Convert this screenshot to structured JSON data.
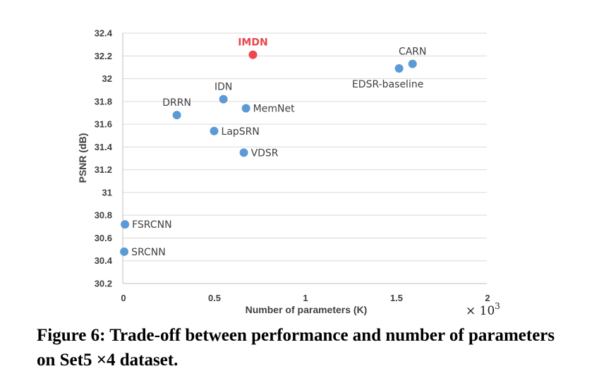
{
  "chart_data": {
    "type": "scatter",
    "xlabel": "Number of parameters (K)",
    "ylabel": "PSNR (dB)",
    "x_multiplier_label": "× 10",
    "x_multiplier_exp": "3",
    "xlim": [
      0,
      2
    ],
    "ylim": [
      30.2,
      32.4
    ],
    "x_ticks": [
      {
        "v": 0,
        "label": "0"
      },
      {
        "v": 0.5,
        "label": "0.5"
      },
      {
        "v": 1,
        "label": "1"
      },
      {
        "v": 1.5,
        "label": "1.5"
      },
      {
        "v": 2,
        "label": "2"
      }
    ],
    "y_ticks": [
      {
        "v": 30.2,
        "label": "30.2"
      },
      {
        "v": 30.4,
        "label": "30.4"
      },
      {
        "v": 30.6,
        "label": "30.6"
      },
      {
        "v": 30.8,
        "label": "30.8"
      },
      {
        "v": 31,
        "label": "31"
      },
      {
        "v": 31.2,
        "label": "31.2"
      },
      {
        "v": 31.4,
        "label": "31.4"
      },
      {
        "v": 31.6,
        "label": "31.6"
      },
      {
        "v": 31.8,
        "label": "31.8"
      },
      {
        "v": 32,
        "label": "32"
      },
      {
        "v": 32.2,
        "label": "32.2"
      },
      {
        "v": 32.4,
        "label": "32.4"
      }
    ],
    "grid": true,
    "colors": {
      "point": "#5b9bd5",
      "highlight": "#f0474d"
    },
    "points": [
      {
        "name": "SRCNN",
        "x": 0.008,
        "y": 30.48,
        "highlight": false,
        "label_pos": "right"
      },
      {
        "name": "FSRCNN",
        "x": 0.012,
        "y": 30.72,
        "highlight": false,
        "label_pos": "right"
      },
      {
        "name": "DRRN",
        "x": 0.297,
        "y": 31.68,
        "highlight": false,
        "label_pos": "above"
      },
      {
        "name": "LapSRN",
        "x": 0.502,
        "y": 31.54,
        "highlight": false,
        "label_pos": "right"
      },
      {
        "name": "IDN",
        "x": 0.553,
        "y": 31.82,
        "highlight": false,
        "label_pos": "above"
      },
      {
        "name": "VDSR",
        "x": 0.665,
        "y": 31.35,
        "highlight": false,
        "label_pos": "right"
      },
      {
        "name": "MemNet",
        "x": 0.677,
        "y": 31.74,
        "highlight": false,
        "label_pos": "right"
      },
      {
        "name": "IMDN",
        "x": 0.715,
        "y": 32.21,
        "highlight": true,
        "label_pos": "above"
      },
      {
        "name": "EDSR-baseline",
        "x": 1.518,
        "y": 32.09,
        "highlight": false,
        "label_pos": "below"
      },
      {
        "name": "CARN",
        "x": 1.592,
        "y": 32.13,
        "highlight": false,
        "label_pos": "above"
      }
    ]
  },
  "caption": "Figure 6: Trade-off between performance and number of parameters on Set5 ×4 dataset."
}
